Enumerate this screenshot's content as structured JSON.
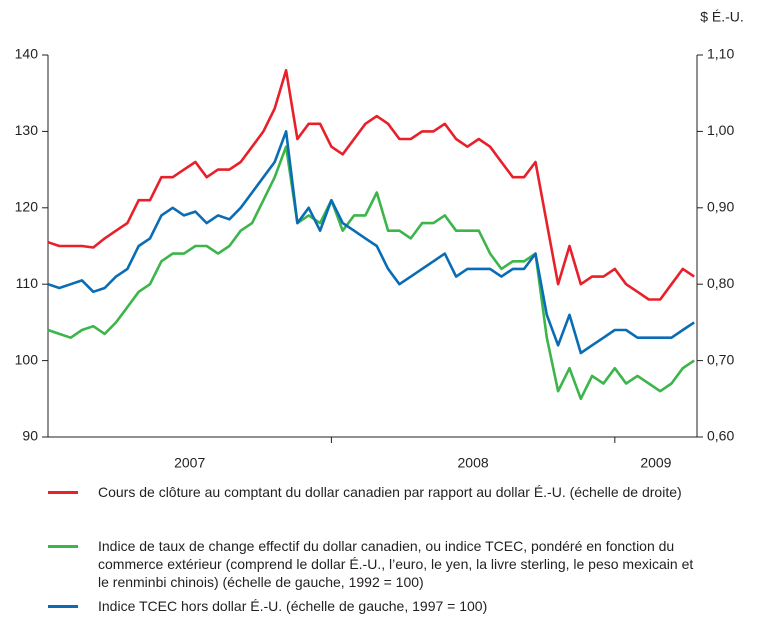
{
  "chart_data": {
    "type": "line",
    "y2_unit": "$ É.-U.",
    "categories": [
      "2007",
      "2008",
      "2009"
    ],
    "xlim": [
      2007,
      2009.29
    ],
    "xticks": [
      2008,
      2009
    ],
    "ylim": [
      90,
      140
    ],
    "yticks": [
      90,
      100,
      110,
      120,
      130,
      140
    ],
    "y2lim": [
      0.6,
      1.1
    ],
    "y2ticks": [
      {
        "value": 0.6,
        "label": "0,60"
      },
      {
        "value": 0.7,
        "label": "0,70"
      },
      {
        "value": 0.8,
        "label": "0,80"
      },
      {
        "value": 0.9,
        "label": "0,90"
      },
      {
        "value": 1.0,
        "label": "1,00"
      },
      {
        "value": 1.1,
        "label": "1,10"
      }
    ],
    "x": [
      2007.0,
      2007.04,
      2007.08,
      2007.12,
      2007.16,
      2007.2,
      2007.24,
      2007.28,
      2007.32,
      2007.36,
      2007.4,
      2007.44,
      2007.48,
      2007.52,
      2007.56,
      2007.6,
      2007.64,
      2007.68,
      2007.72,
      2007.76,
      2007.8,
      2007.84,
      2007.88,
      2007.92,
      2007.96,
      2008.0,
      2008.04,
      2008.08,
      2008.12,
      2008.16,
      2008.2,
      2008.24,
      2008.28,
      2008.32,
      2008.36,
      2008.4,
      2008.44,
      2008.48,
      2008.52,
      2008.56,
      2008.6,
      2008.64,
      2008.68,
      2008.72,
      2008.76,
      2008.8,
      2008.84,
      2008.88,
      2008.92,
      2008.96,
      2009.0,
      2009.04,
      2009.08,
      2009.12,
      2009.16,
      2009.2,
      2009.24,
      2009.28
    ],
    "series": [
      {
        "name": "Cours de clôture au comptant du dollar canadien par rapport au dollar É.-U. (échelle de droite)",
        "color": "#e8202a",
        "axis": "y2",
        "values": [
          0.855,
          0.85,
          0.85,
          0.85,
          0.848,
          0.86,
          0.87,
          0.88,
          0.91,
          0.91,
          0.94,
          0.94,
          0.95,
          0.96,
          0.94,
          0.95,
          0.95,
          0.96,
          0.98,
          1.0,
          1.03,
          1.08,
          0.99,
          1.01,
          1.01,
          0.98,
          0.97,
          0.99,
          1.01,
          1.02,
          1.01,
          0.99,
          0.99,
          1.0,
          1.0,
          1.01,
          0.99,
          0.98,
          0.99,
          0.98,
          0.96,
          0.94,
          0.94,
          0.96,
          0.88,
          0.8,
          0.85,
          0.8,
          0.81,
          0.81,
          0.82,
          0.8,
          0.79,
          0.78,
          0.78,
          0.8,
          0.82,
          0.81
        ]
      },
      {
        "name": "Indice de taux de change effectif du dollar canadien, ou indice TCEC, pondéré en fonction du commerce extérieur (comprend le dollar É.-U., l’euro, le yen, la livre sterling, le peso mexicain et le renminbi chinois) (échelle de gauche, 1992 = 100)",
        "color": "#3cb54a",
        "values": [
          104,
          103.5,
          103,
          104,
          104.5,
          103.5,
          105,
          107,
          109,
          110,
          113,
          114,
          114,
          115,
          115,
          114,
          115,
          117,
          118,
          121,
          124,
          128,
          118,
          119,
          118,
          121,
          117,
          119,
          119,
          122,
          117,
          117,
          116,
          118,
          118,
          119,
          117,
          117,
          117,
          114,
          112,
          113,
          113,
          114,
          103,
          96,
          99,
          95,
          98,
          97,
          99,
          97,
          98,
          97,
          96,
          97,
          99,
          100
        ]
      },
      {
        "name": "Indice TCEC hors dollar É.-U. (échelle de gauche, 1997 = 100)",
        "color": "#0a6cb4",
        "values": [
          110,
          109.5,
          110,
          110.5,
          109,
          109.5,
          111,
          112,
          115,
          116,
          119,
          120,
          119,
          119.5,
          118,
          119,
          118.5,
          120,
          122,
          124,
          126,
          130,
          118,
          120,
          117,
          121,
          118,
          117,
          116,
          115,
          112,
          110,
          111,
          112,
          113,
          114,
          111,
          112,
          112,
          112,
          111,
          112,
          112,
          114,
          106,
          102,
          106,
          101,
          102,
          103,
          104,
          104,
          103,
          103,
          103,
          103,
          104,
          105
        ]
      }
    ]
  }
}
